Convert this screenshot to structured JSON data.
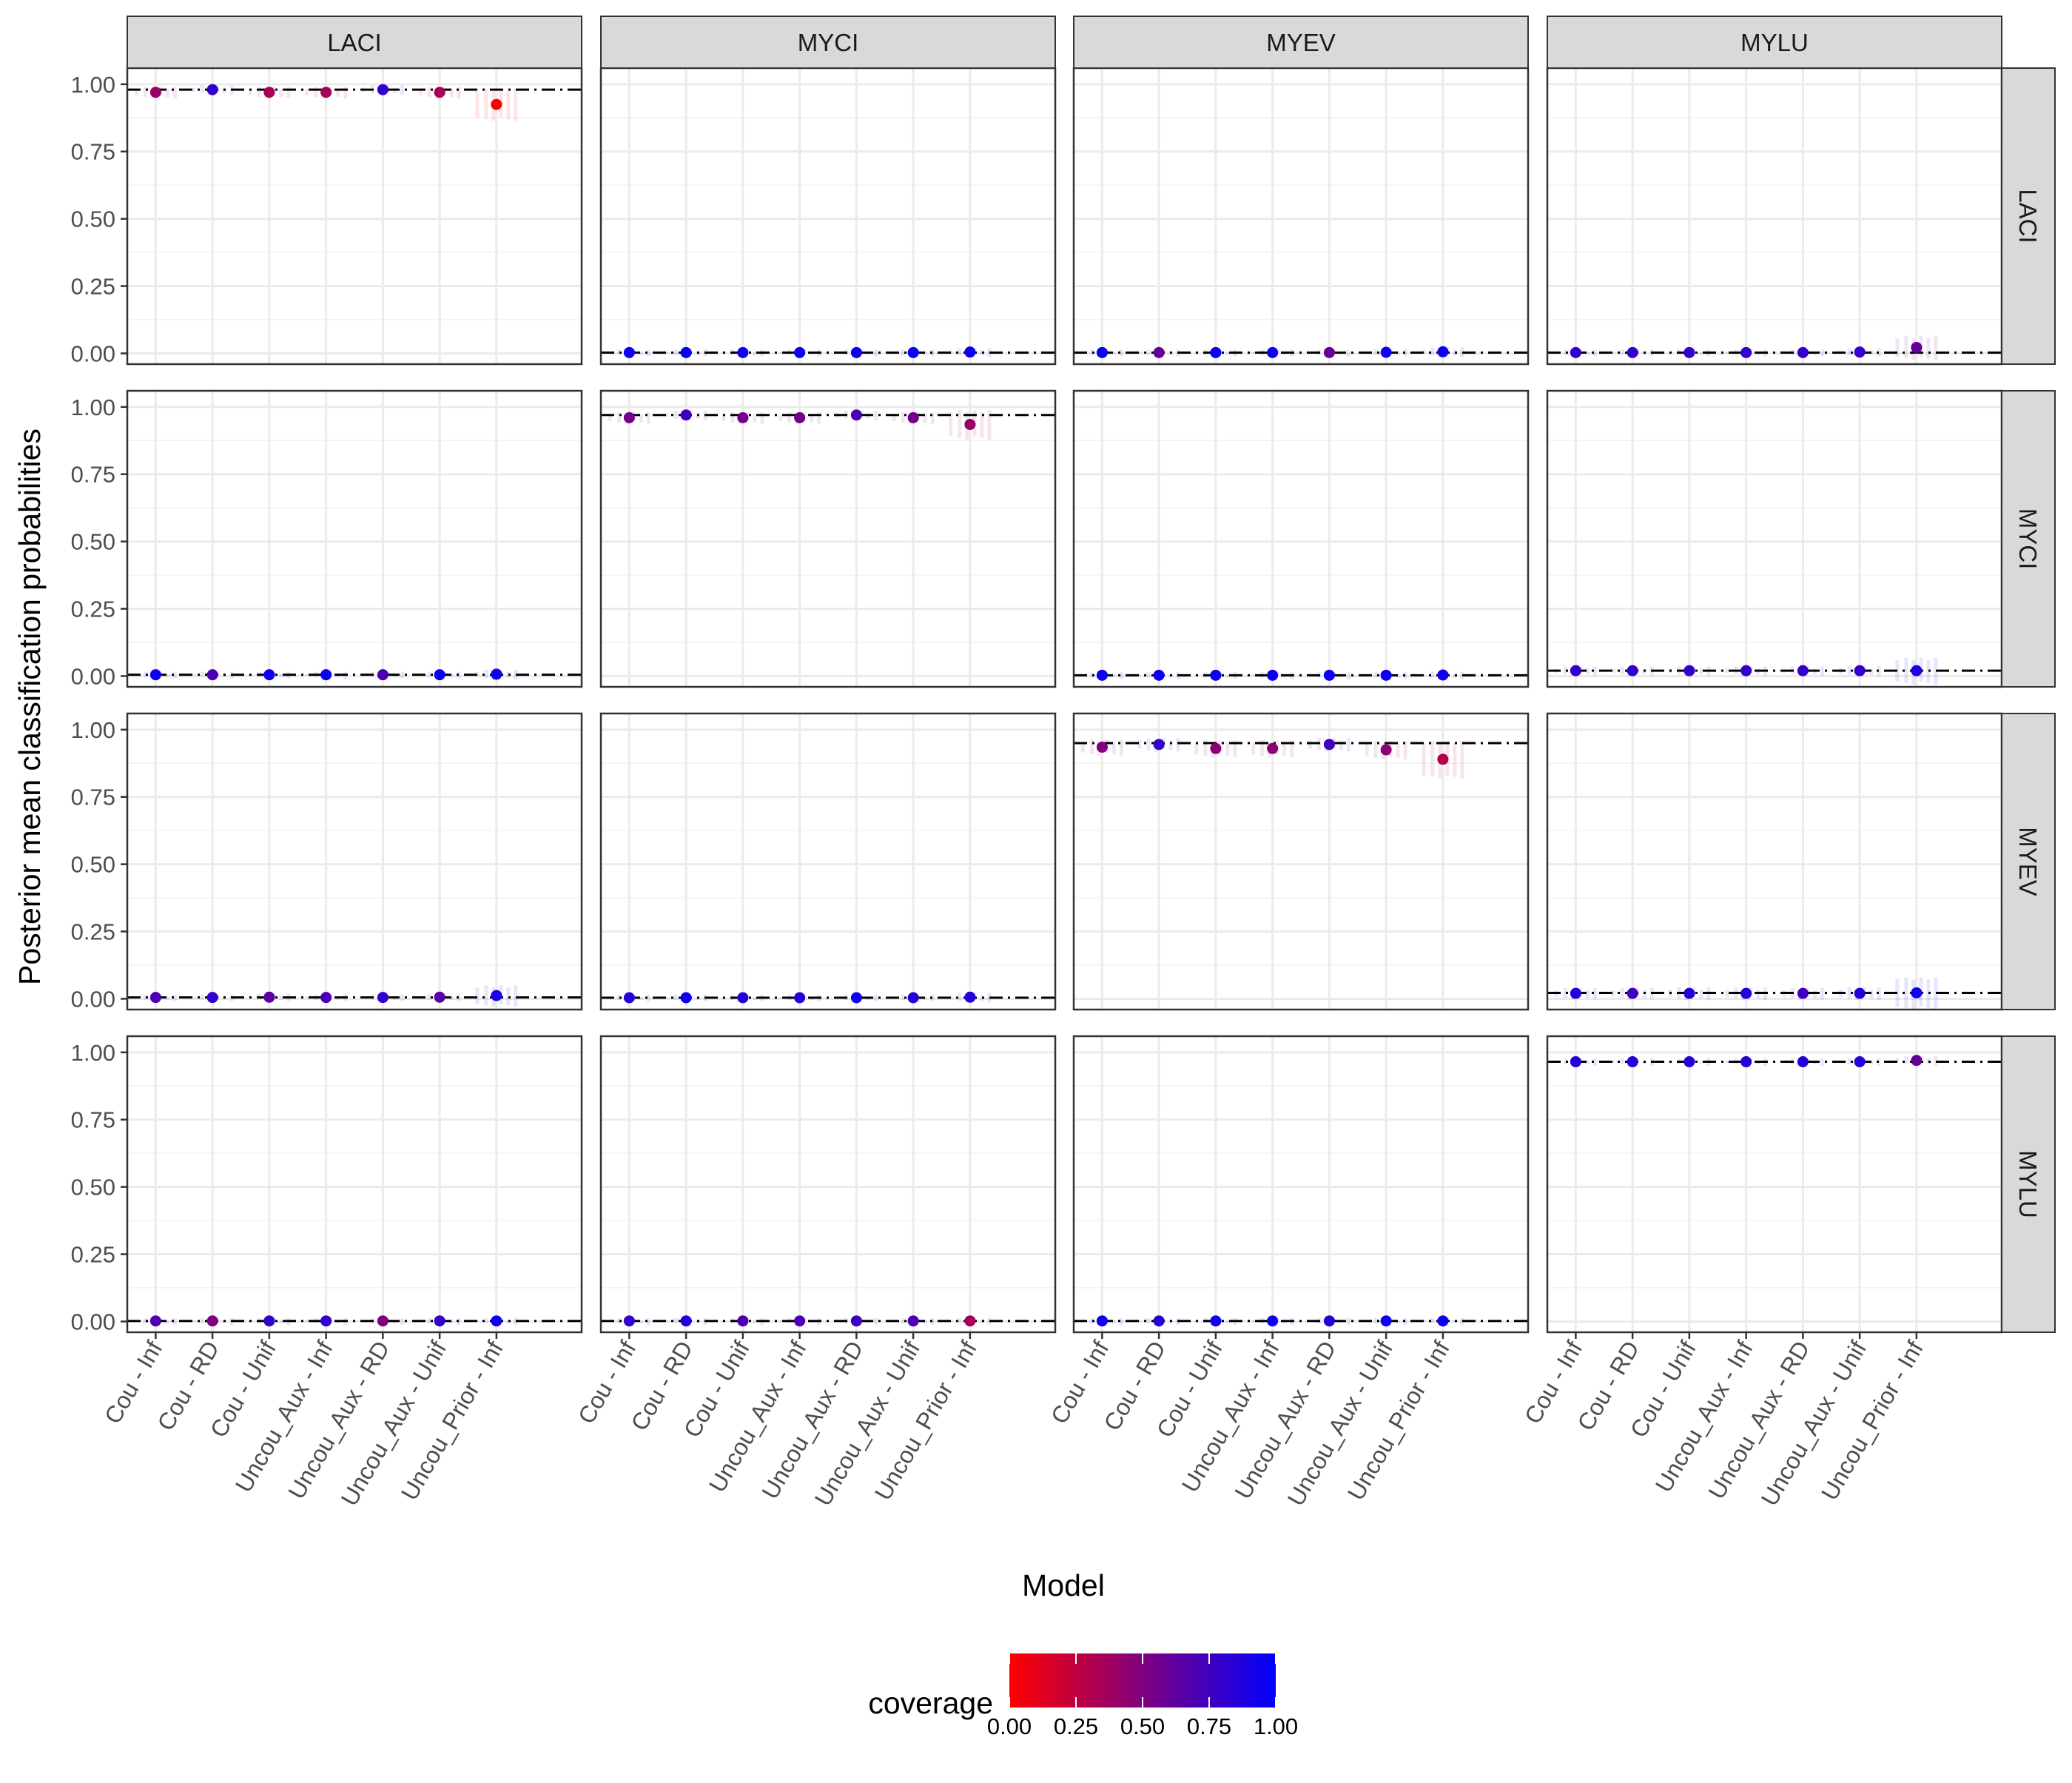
{
  "chart_data": {
    "type": "scatter",
    "facet_cols": [
      "LACI",
      "MYCI",
      "MYEV",
      "MYLU"
    ],
    "facet_rows": [
      "LACI",
      "MYCI",
      "MYEV",
      "MYLU"
    ],
    "categories": [
      "Cou - Inf",
      "Cou - RD",
      "Cou - Unif",
      "Uncou_Aux - Inf",
      "Uncou_Aux - RD",
      "Uncou_Aux - Unif",
      "Uncou_Prior - Inf"
    ],
    "xlabel": "Model",
    "ylabel": "Posterior mean classification probabilities",
    "ylim": [
      -0.04,
      1.06
    ],
    "y_ticks": [
      0,
      0.25,
      0.5,
      0.75,
      1
    ],
    "y_tick_labels": [
      "0.00",
      "0.25",
      "0.50",
      "0.75",
      "1.00"
    ],
    "grid": true,
    "legend": {
      "title": "coverage",
      "position": "bottom",
      "low_color": "#ff0000",
      "high_color": "#0000ff",
      "range": [
        0,
        1
      ],
      "ticks": [
        0,
        0.25,
        0.5,
        0.75,
        1
      ],
      "tick_labels": [
        "0.00",
        "0.25",
        "0.50",
        "0.75",
        "1.00"
      ]
    },
    "panels": [
      {
        "row": "LACI",
        "col": "LACI",
        "ref": 0.98,
        "means": [
          0.97,
          0.98,
          0.97,
          0.97,
          0.98,
          0.97,
          0.925
        ],
        "coverage": [
          0.4,
          0.8,
          0.35,
          0.35,
          0.8,
          0.35,
          0.0
        ],
        "spread": [
          0.012,
          0.008,
          0.012,
          0.012,
          0.008,
          0.012,
          0.05
        ]
      },
      {
        "row": "LACI",
        "col": "MYCI",
        "ref": 0.003,
        "means": [
          0.003,
          0.003,
          0.003,
          0.003,
          0.003,
          0.003,
          0.005
        ],
        "coverage": [
          0.95,
          0.95,
          0.95,
          0.95,
          0.95,
          0.95,
          0.95
        ],
        "spread": [
          0.003,
          0.003,
          0.003,
          0.003,
          0.003,
          0.003,
          0.006
        ]
      },
      {
        "row": "LACI",
        "col": "MYEV",
        "ref": 0.003,
        "means": [
          0.003,
          0.003,
          0.003,
          0.003,
          0.003,
          0.004,
          0.006
        ],
        "coverage": [
          0.95,
          0.6,
          0.95,
          0.95,
          0.6,
          0.95,
          0.95
        ],
        "spread": [
          0.003,
          0.003,
          0.003,
          0.003,
          0.003,
          0.003,
          0.008
        ]
      },
      {
        "row": "LACI",
        "col": "MYLU",
        "ref": 0.003,
        "means": [
          0.003,
          0.003,
          0.003,
          0.003,
          0.003,
          0.005,
          0.022
        ],
        "coverage": [
          0.8,
          0.8,
          0.8,
          0.8,
          0.8,
          0.8,
          0.6
        ],
        "spread": [
          0.003,
          0.003,
          0.003,
          0.003,
          0.003,
          0.005,
          0.035
        ]
      },
      {
        "row": "MYCI",
        "col": "LACI",
        "ref": 0.005,
        "means": [
          0.005,
          0.005,
          0.005,
          0.005,
          0.005,
          0.005,
          0.007
        ],
        "coverage": [
          0.95,
          0.7,
          0.95,
          0.95,
          0.7,
          0.95,
          0.95
        ],
        "spread": [
          0.003,
          0.003,
          0.003,
          0.003,
          0.003,
          0.003,
          0.008
        ]
      },
      {
        "row": "MYCI",
        "col": "MYCI",
        "ref": 0.97,
        "means": [
          0.96,
          0.97,
          0.96,
          0.96,
          0.97,
          0.96,
          0.935
        ],
        "coverage": [
          0.55,
          0.75,
          0.55,
          0.55,
          0.7,
          0.55,
          0.4
        ],
        "spread": [
          0.012,
          0.008,
          0.012,
          0.012,
          0.008,
          0.012,
          0.045
        ]
      },
      {
        "row": "MYCI",
        "col": "MYEV",
        "ref": 0.003,
        "means": [
          0.003,
          0.003,
          0.003,
          0.003,
          0.003,
          0.003,
          0.004
        ],
        "coverage": [
          0.95,
          0.95,
          0.95,
          0.95,
          0.95,
          0.95,
          0.95
        ],
        "spread": [
          0.003,
          0.003,
          0.003,
          0.003,
          0.003,
          0.003,
          0.004
        ]
      },
      {
        "row": "MYCI",
        "col": "MYLU",
        "ref": 0.02,
        "means": [
          0.02,
          0.02,
          0.02,
          0.02,
          0.02,
          0.02,
          0.02
        ],
        "coverage": [
          0.8,
          0.8,
          0.8,
          0.8,
          0.8,
          0.8,
          0.9
        ],
        "spread": [
          0.008,
          0.008,
          0.008,
          0.008,
          0.008,
          0.01,
          0.04
        ]
      },
      {
        "row": "MYEV",
        "col": "LACI",
        "ref": 0.005,
        "means": [
          0.005,
          0.005,
          0.006,
          0.005,
          0.005,
          0.006,
          0.012
        ],
        "coverage": [
          0.7,
          0.8,
          0.65,
          0.7,
          0.8,
          0.65,
          0.9
        ],
        "spread": [
          0.003,
          0.003,
          0.004,
          0.003,
          0.003,
          0.004,
          0.03
        ]
      },
      {
        "row": "MYEV",
        "col": "MYCI",
        "ref": 0.004,
        "means": [
          0.004,
          0.004,
          0.004,
          0.004,
          0.004,
          0.004,
          0.006
        ],
        "coverage": [
          0.85,
          0.95,
          0.85,
          0.85,
          0.95,
          0.85,
          0.85
        ],
        "spread": [
          0.003,
          0.003,
          0.003,
          0.003,
          0.003,
          0.003,
          0.008
        ]
      },
      {
        "row": "MYEV",
        "col": "MYEV",
        "ref": 0.95,
        "means": [
          0.935,
          0.945,
          0.93,
          0.93,
          0.945,
          0.925,
          0.89
        ],
        "coverage": [
          0.5,
          0.8,
          0.45,
          0.45,
          0.75,
          0.45,
          0.3
        ],
        "spread": [
          0.02,
          0.015,
          0.022,
          0.022,
          0.015,
          0.025,
          0.06
        ]
      },
      {
        "row": "MYEV",
        "col": "MYLU",
        "ref": 0.022,
        "means": [
          0.02,
          0.02,
          0.02,
          0.02,
          0.02,
          0.02,
          0.022
        ],
        "coverage": [
          0.85,
          0.75,
          0.85,
          0.85,
          0.75,
          0.85,
          0.95
        ],
        "spread": [
          0.012,
          0.012,
          0.014,
          0.014,
          0.012,
          0.014,
          0.05
        ]
      },
      {
        "row": "MYLU",
        "col": "LACI",
        "ref": 0.002,
        "means": [
          0.002,
          0.002,
          0.002,
          0.002,
          0.002,
          0.002,
          0.002
        ],
        "coverage": [
          0.7,
          0.5,
          0.8,
          0.8,
          0.5,
          0.8,
          0.95
        ],
        "spread": [
          0.002,
          0.002,
          0.002,
          0.002,
          0.002,
          0.002,
          0.003
        ]
      },
      {
        "row": "MYLU",
        "col": "MYCI",
        "ref": 0.002,
        "means": [
          0.002,
          0.002,
          0.002,
          0.002,
          0.002,
          0.002,
          0.002
        ],
        "coverage": [
          0.8,
          0.85,
          0.7,
          0.7,
          0.75,
          0.7,
          0.35
        ],
        "spread": [
          0.002,
          0.002,
          0.002,
          0.002,
          0.002,
          0.002,
          0.003
        ]
      },
      {
        "row": "MYLU",
        "col": "MYEV",
        "ref": 0.002,
        "means": [
          0.002,
          0.002,
          0.002,
          0.002,
          0.002,
          0.002,
          0.002
        ],
        "coverage": [
          0.95,
          0.85,
          0.95,
          0.95,
          0.85,
          0.95,
          0.95
        ],
        "spread": [
          0.002,
          0.002,
          0.002,
          0.002,
          0.002,
          0.002,
          0.003
        ]
      },
      {
        "row": "MYLU",
        "col": "MYLU",
        "ref": 0.965,
        "means": [
          0.965,
          0.965,
          0.965,
          0.965,
          0.965,
          0.965,
          0.97
        ],
        "coverage": [
          0.85,
          0.85,
          0.85,
          0.85,
          0.85,
          0.85,
          0.6
        ],
        "spread": [
          0.004,
          0.004,
          0.004,
          0.004,
          0.004,
          0.004,
          0.008
        ]
      }
    ]
  }
}
